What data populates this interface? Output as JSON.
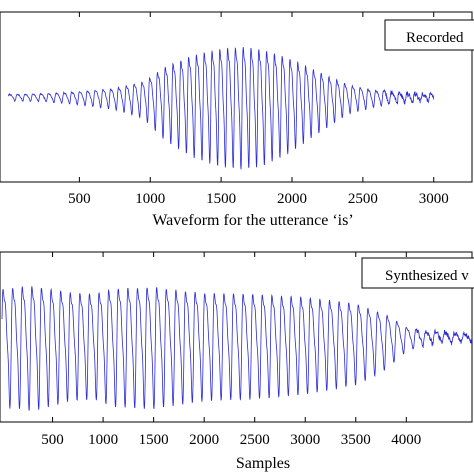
{
  "chart_data": [
    {
      "type": "line",
      "title": "",
      "xlabel": "Waveform for the utterance ‘is’",
      "ylabel": "",
      "xlim": [
        -60,
        3270
      ],
      "ylim": [
        -1.12,
        1.12
      ],
      "xticks": [
        500,
        1000,
        1500,
        2000,
        2500,
        3000
      ],
      "xtick_labels": [
        "500",
        "1000",
        "1500",
        "2000",
        "2500",
        "3000"
      ],
      "grid": false,
      "legend": {
        "label": "Recorded",
        "placement": "top-right"
      },
      "series": [
        {
          "name": "Recorded",
          "color": "#2a2ad6",
          "signal": {
            "x_start": 0,
            "x_end": 3000,
            "period_samples": 55,
            "envelope_x": [
              0,
              250,
              500,
              750,
              950,
              1100,
              1300,
              1500,
              1650,
              1800,
              2000,
              2200,
              2400,
              2600,
              2800,
              3000
            ],
            "envelope_y": [
              0.05,
              0.06,
              0.1,
              0.16,
              0.28,
              0.55,
              0.78,
              0.9,
              0.93,
              0.88,
              0.7,
              0.45,
              0.22,
              0.12,
              0.07,
              0.05
            ],
            "noise_after_x": 2650
          }
        }
      ]
    },
    {
      "type": "line",
      "title": "",
      "xlabel": "Samples",
      "ylabel": "",
      "xlim": [
        -20,
        4650
      ],
      "ylim": [
        -1.12,
        1.12
      ],
      "xticks": [
        500,
        1000,
        1500,
        2000,
        2500,
        3000,
        3500,
        4000
      ],
      "xtick_labels": [
        "500",
        "1000",
        "1500",
        "2000",
        "2500",
        "3000",
        "3500",
        "4000"
      ],
      "grid": false,
      "legend": {
        "label": "Synthesized v",
        "placement": "top-right"
      },
      "series": [
        {
          "name": "Synthesized v",
          "color": "#2a2ad6",
          "signal": {
            "x_start": 0,
            "x_end": 4650,
            "period_samples": 95,
            "envelope_x": [
              0,
              300,
              700,
              900,
              1100,
              1500,
              1700,
              2000,
              2500,
              3000,
              3500,
              3800,
              4000,
              4200,
              4400,
              4650
            ],
            "envelope_y": [
              0.9,
              0.95,
              0.82,
              0.8,
              0.9,
              0.93,
              0.88,
              0.82,
              0.8,
              0.74,
              0.62,
              0.42,
              0.18,
              0.1,
              0.08,
              0.06
            ],
            "noise_after_x": 4100
          }
        }
      ]
    }
  ]
}
